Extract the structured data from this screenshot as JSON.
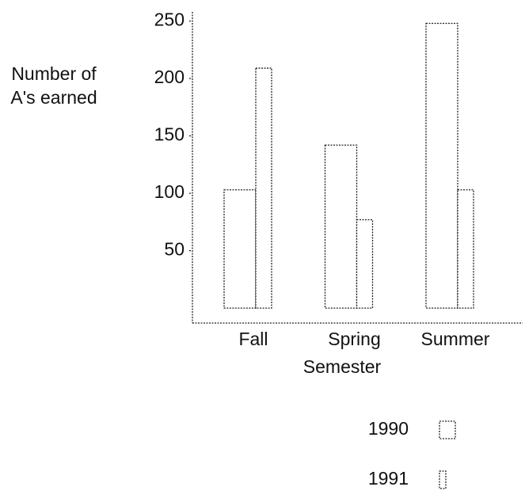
{
  "chart_data": {
    "type": "bar",
    "y_label": "Number of A's earned",
    "x_label": "Semester",
    "categories": [
      "Fall",
      "Spring",
      "Summer"
    ],
    "series": [
      {
        "name": "1990",
        "color": "#ffffff",
        "values": [
          103,
          142,
          248
        ]
      },
      {
        "name": "1991",
        "color": "#ffffff",
        "values": [
          209,
          77,
          103
        ]
      }
    ],
    "ylim": [
      -13,
      258
    ],
    "yticks": [
      50,
      100,
      150,
      200,
      250
    ],
    "grid": false
  }
}
